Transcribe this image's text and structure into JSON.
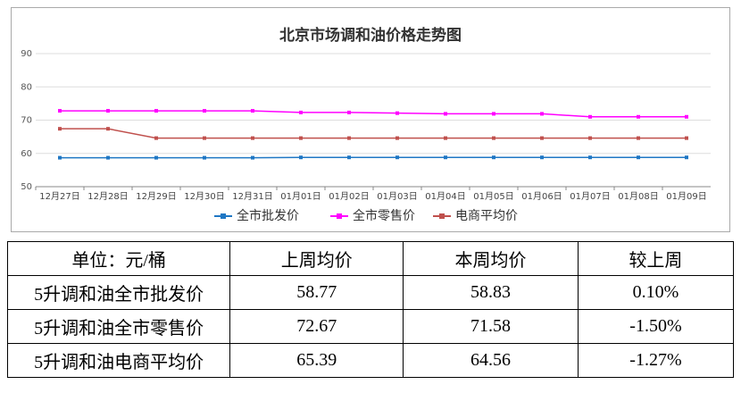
{
  "chart_data": {
    "type": "line",
    "title": "北京市场调和油价格走势图",
    "categories": [
      "12月27日",
      "12月28日",
      "12月29日",
      "12月30日",
      "12月31日",
      "01月01日",
      "01月02日",
      "01月03日",
      "01月04日",
      "01月05日",
      "01月06日",
      "01月07日",
      "01月08日",
      "01月09日"
    ],
    "series": [
      {
        "name": "全市批发价",
        "color": "#1f77c4",
        "values": [
          58.7,
          58.7,
          58.7,
          58.7,
          58.7,
          58.8,
          58.8,
          58.8,
          58.8,
          58.8,
          58.8,
          58.8,
          58.8,
          58.8
        ]
      },
      {
        "name": "全市零售价",
        "color": "#ff00ff",
        "values": [
          72.8,
          72.8,
          72.8,
          72.8,
          72.8,
          72.3,
          72.3,
          72.1,
          71.9,
          71.9,
          71.9,
          71.0,
          71.0,
          71.0
        ]
      },
      {
        "name": "电商平均价",
        "color": "#c0504d",
        "values": [
          67.4,
          67.4,
          64.6,
          64.6,
          64.6,
          64.6,
          64.6,
          64.6,
          64.6,
          64.6,
          64.6,
          64.6,
          64.6,
          64.6
        ]
      }
    ],
    "ylim": [
      50,
      90
    ],
    "yticks": [
      50,
      60,
      70,
      80,
      90
    ],
    "grid": true,
    "legend": "bottom"
  },
  "table": {
    "header": [
      "单位：元/桶",
      "上周均价",
      "本周均价",
      "较上周"
    ],
    "rows": [
      [
        "5升调和油全市批发价",
        "58.77",
        "58.83",
        "0.10%"
      ],
      [
        "5升调和油全市零售价",
        "72.67",
        "71.58",
        "-1.50%"
      ],
      [
        "5升调和油电商平均价",
        "65.39",
        "64.56",
        "-1.27%"
      ]
    ]
  }
}
